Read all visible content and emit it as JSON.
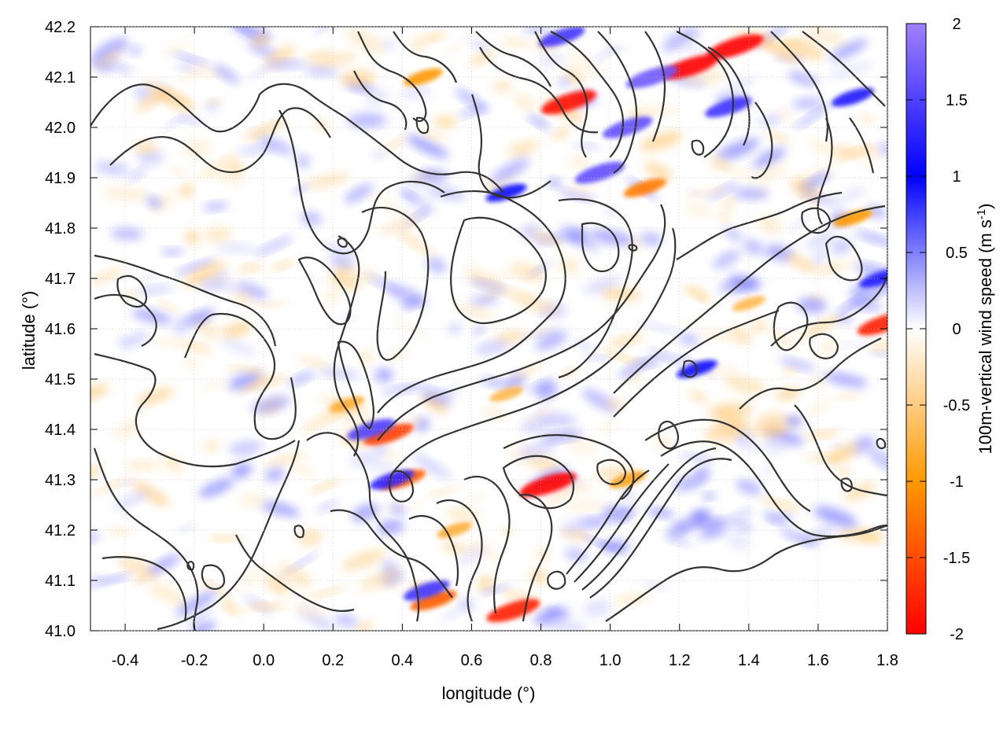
{
  "chart_data": {
    "type": "heatmap",
    "title": "",
    "xlabel": "longitude (°)",
    "ylabel": "latitude (°)",
    "colorbar_label": "100m-vertical wind speed (m s-1)",
    "colorbar_label_main": "100m-vertical wind speed (m s",
    "colorbar_label_sup": "-1",
    "colorbar_label_end": ")",
    "xlim": [
      -0.5,
      1.8
    ],
    "ylim": [
      41.0,
      42.2
    ],
    "zlim": [
      -2,
      2
    ],
    "x_ticks": [
      "-0.4",
      "-0.2",
      "0.0",
      "0.2",
      "0.4",
      "0.6",
      "0.8",
      "1.0",
      "1.2",
      "1.4",
      "1.6",
      "1.8"
    ],
    "x_tick_values": [
      -0.4,
      -0.2,
      0.0,
      0.2,
      0.4,
      0.6,
      0.8,
      1.0,
      1.2,
      1.4,
      1.6,
      1.8
    ],
    "y_ticks": [
      "42.2",
      "42.1",
      "42.0",
      "41.9",
      "41.8",
      "41.7",
      "41.6",
      "41.5",
      "41.4",
      "41.3",
      "41.2",
      "41.1",
      "41.0"
    ],
    "y_tick_values": [
      42.2,
      42.1,
      42.0,
      41.9,
      41.8,
      41.7,
      41.6,
      41.5,
      41.4,
      41.3,
      41.2,
      41.1,
      41.0
    ],
    "colorbar_ticks": [
      "2",
      "1.5",
      "1",
      "0.5",
      "0",
      "-0.5",
      "-1",
      "-1.5",
      "-2"
    ],
    "colorbar_tick_values": [
      2,
      1.5,
      1,
      0.5,
      0,
      -0.5,
      -1,
      -1.5,
      -2
    ],
    "colormap": [
      "#ff0000",
      "#ff9900",
      "#ffffff",
      "#0000ff",
      "#a080ff"
    ],
    "grid": true,
    "contour_color": "#333333",
    "hotspots": [
      {
        "lon": 0.88,
        "lat": 42.05,
        "value": -1.9
      },
      {
        "lon": 1.23,
        "lat": 42.12,
        "value": -2.0
      },
      {
        "lon": 1.36,
        "lat": 42.16,
        "value": -2.0
      },
      {
        "lon": 0.82,
        "lat": 41.29,
        "value": -2.0
      },
      {
        "lon": 0.36,
        "lat": 41.39,
        "value": -1.6
      },
      {
        "lon": 0.4,
        "lat": 41.3,
        "value": -1.4
      },
      {
        "lon": 0.72,
        "lat": 41.04,
        "value": -1.8
      },
      {
        "lon": 0.49,
        "lat": 41.06,
        "value": -1.4
      },
      {
        "lon": 1.79,
        "lat": 41.61,
        "value": -1.8
      },
      {
        "lon": 0.46,
        "lat": 42.1,
        "value": -1.0
      },
      {
        "lon": 1.1,
        "lat": 41.88,
        "value": -1.2
      },
      {
        "lon": 1.7,
        "lat": 41.82,
        "value": -1.0
      },
      {
        "lon": 1.05,
        "lat": 42.0,
        "value": 1.6
      },
      {
        "lon": 1.12,
        "lat": 42.1,
        "value": 1.7
      },
      {
        "lon": 0.97,
        "lat": 41.91,
        "value": 1.6
      },
      {
        "lon": 0.31,
        "lat": 41.4,
        "value": 1.5
      },
      {
        "lon": 0.37,
        "lat": 41.3,
        "value": 1.3
      },
      {
        "lon": 0.47,
        "lat": 41.08,
        "value": 1.4
      },
      {
        "lon": 0.86,
        "lat": 42.18,
        "value": 1.4
      },
      {
        "lon": 1.34,
        "lat": 42.04,
        "value": 1.4
      },
      {
        "lon": 1.7,
        "lat": 42.06,
        "value": 1.2
      },
      {
        "lon": 0.7,
        "lat": 41.87,
        "value": 1.1
      },
      {
        "lon": 1.25,
        "lat": 41.52,
        "value": 1.1
      },
      {
        "lon": 1.78,
        "lat": 41.7,
        "value": 1.2
      },
      {
        "lon": 0.24,
        "lat": 41.45,
        "value": -0.8
      },
      {
        "lon": 0.7,
        "lat": 41.47,
        "value": -0.7
      },
      {
        "lon": 1.4,
        "lat": 41.65,
        "value": -0.7
      },
      {
        "lon": 0.55,
        "lat": 41.2,
        "value": -0.8
      },
      {
        "lon": 1.05,
        "lat": 41.3,
        "value": -0.9
      }
    ]
  }
}
